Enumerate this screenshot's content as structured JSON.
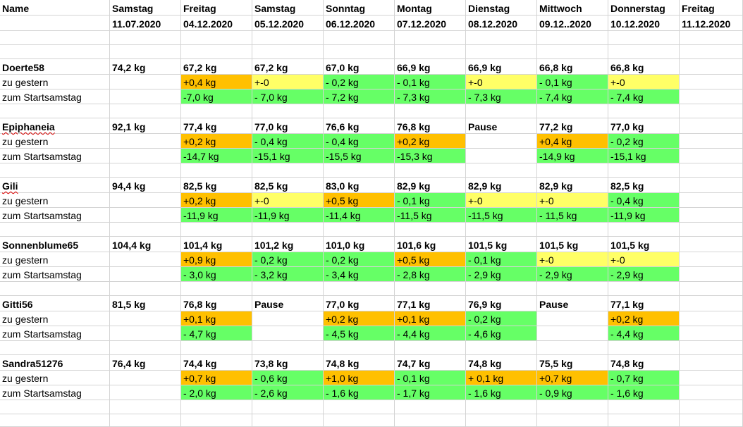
{
  "colors": {
    "increase": "#ffc000",
    "unchanged": "#ffff66",
    "decrease": "#66ff66",
    "gridline": "#d4d4d4"
  },
  "header": {
    "name_label": "Name",
    "columns": [
      {
        "day": "Samstag",
        "date": "11.07.2020"
      },
      {
        "day": "Freitag",
        "date": "04.12.2020"
      },
      {
        "day": "Samstag",
        "date": "05.12.2020"
      },
      {
        "day": "Sonntag",
        "date": "06.12.2020"
      },
      {
        "day": "Montag",
        "date": "07.12.2020"
      },
      {
        "day": "Dienstag",
        "date": "08.12.2020"
      },
      {
        "day": "Mittwoch",
        "date": "09.12..2020"
      },
      {
        "day": "Donnerstag",
        "date": "10.12.2020"
      },
      {
        "day": "Freitag",
        "date": "11.12.2020"
      }
    ]
  },
  "labels": {
    "diff_yesterday": "zu gestern",
    "diff_start": "zum Startsamstag"
  },
  "people": [
    {
      "name": "Doerte58",
      "weights": [
        "74,2 kg",
        "67,2 kg",
        "67,2 kg",
        "67,0 kg",
        "66,9 kg",
        "66,9 kg",
        "66,8 kg",
        "66,8 kg",
        ""
      ],
      "yesterday": [
        "",
        "+0,4 kg",
        "+-0",
        "- 0,2 kg",
        "- 0,1 kg",
        "+-0",
        "- 0,1 kg",
        "+-0",
        ""
      ],
      "yesterday_colors": [
        "",
        "orange",
        "yellow",
        "green",
        "green",
        "yellow",
        "green",
        "yellow",
        ""
      ],
      "start": [
        "",
        "-7,0 kg",
        "- 7,0 kg",
        "- 7,2 kg",
        "- 7,3 kg",
        "- 7,3 kg",
        "- 7,4 kg",
        "- 7,4 kg",
        ""
      ],
      "start_colors": [
        "",
        "green",
        "green",
        "green",
        "green",
        "green",
        "green",
        "green",
        ""
      ]
    },
    {
      "name": "Epiphaneia",
      "weights": [
        "92,1 kg",
        "77,4 kg",
        "77,0 kg",
        "76,6 kg",
        "76,8 kg",
        "Pause",
        "77,2 kg",
        "77,0 kg",
        ""
      ],
      "yesterday": [
        "",
        "+0,2 kg",
        "- 0,4 kg",
        "- 0,4 kg",
        "+0,2 kg",
        "",
        "+0,4 kg",
        "- 0,2 kg",
        ""
      ],
      "yesterday_colors": [
        "",
        "orange",
        "green",
        "green",
        "orange",
        "",
        "orange",
        "green",
        ""
      ],
      "start": [
        "",
        "-14,7 kg",
        "-15,1 kg",
        "-15,5 kg",
        "-15,3 kg",
        "",
        "-14,9 kg",
        "-15,1 kg",
        ""
      ],
      "start_colors": [
        "",
        "green",
        "green",
        "green",
        "green",
        "",
        "green",
        "green",
        ""
      ]
    },
    {
      "name": "Gili",
      "weights": [
        "94,4 kg",
        "82,5 kg",
        "82,5 kg",
        "83,0 kg",
        "82,9 kg",
        "82,9 kg",
        "82,9 kg",
        "82,5 kg",
        ""
      ],
      "yesterday": [
        "",
        "+0,2 kg",
        "+-0",
        "+0,5 kg",
        "- 0,1 kg",
        "+-0",
        "+-0",
        "- 0,4 kg",
        ""
      ],
      "yesterday_colors": [
        "",
        "orange",
        "yellow",
        "orange",
        "green",
        "yellow",
        "yellow",
        "green",
        ""
      ],
      "start": [
        "",
        "-11,9 kg",
        "-11,9 kg",
        "-11,4 kg",
        "-11,5 kg",
        "-11,5 kg",
        "- 11,5 kg",
        "-11,9 kg",
        ""
      ],
      "start_colors": [
        "",
        "green",
        "green",
        "green",
        "green",
        "green",
        "green",
        "green",
        ""
      ]
    },
    {
      "name": "Sonnenblume65",
      "weights": [
        "104,4 kg",
        "101,4 kg",
        "101,2 kg",
        "101,0 kg",
        "101,6 kg",
        "101,5 kg",
        "101,5 kg",
        "101,5 kg",
        ""
      ],
      "yesterday": [
        "",
        "+0,9 kg",
        "- 0,2 kg",
        "- 0,2 kg",
        "+0,5 kg",
        "- 0,1 kg",
        "+-0",
        "+-0",
        ""
      ],
      "yesterday_colors": [
        "",
        "orange",
        "green",
        "green",
        "orange",
        "green",
        "yellow",
        "yellow",
        ""
      ],
      "start": [
        "",
        "- 3,0 kg",
        "- 3,2 kg",
        "- 3,4 kg",
        "- 2,8 kg",
        "- 2,9 kg",
        "- 2,9 kg",
        "- 2,9 kg",
        ""
      ],
      "start_colors": [
        "",
        "green",
        "green",
        "green",
        "green",
        "green",
        "green",
        "green",
        ""
      ]
    },
    {
      "name": "Gitti56",
      "weights": [
        "81,5 kg",
        "76,8 kg",
        "Pause",
        "77,0 kg",
        "77,1 kg",
        "76,9 kg",
        "Pause",
        "77,1 kg",
        ""
      ],
      "yesterday": [
        "",
        "+0,1 kg",
        "",
        "+0,2 kg",
        "+0,1 kg",
        "- 0,2 kg",
        "",
        "+0,2 kg",
        ""
      ],
      "yesterday_colors": [
        "",
        "orange",
        "",
        "orange",
        "orange",
        "green",
        "",
        "orange",
        ""
      ],
      "start": [
        "",
        "- 4,7 kg",
        "",
        "- 4,5 kg",
        "- 4,4 kg",
        "- 4,6 kg",
        "",
        "- 4,4 kg",
        ""
      ],
      "start_colors": [
        "",
        "green",
        "",
        "green",
        "green",
        "green",
        "",
        "green",
        ""
      ]
    },
    {
      "name": "Sandra51276",
      "weights": [
        "76,4 kg",
        "74,4 kg",
        "73,8 kg",
        "74,8 kg",
        "74,7 kg",
        "74,8 kg",
        "75,5 kg",
        "74,8 kg",
        ""
      ],
      "yesterday": [
        "",
        "+0,7 kg",
        "- 0,6 kg",
        "+1,0 kg",
        "- 0,1 kg",
        "+ 0,1 kg",
        "+0,7 kg",
        "- 0,7 kg",
        ""
      ],
      "yesterday_colors": [
        "",
        "orange",
        "green",
        "orange",
        "green",
        "orange",
        "orange",
        "green",
        ""
      ],
      "start": [
        "",
        "- 2,0 kg",
        "- 2,6 kg",
        "- 1,6 kg",
        "- 1,7 kg",
        "- 1,6 kg",
        "- 0,9 kg",
        "- 1,6 kg",
        ""
      ],
      "start_colors": [
        "",
        "green",
        "green",
        "green",
        "green",
        "green",
        "green",
        "green",
        ""
      ]
    }
  ]
}
